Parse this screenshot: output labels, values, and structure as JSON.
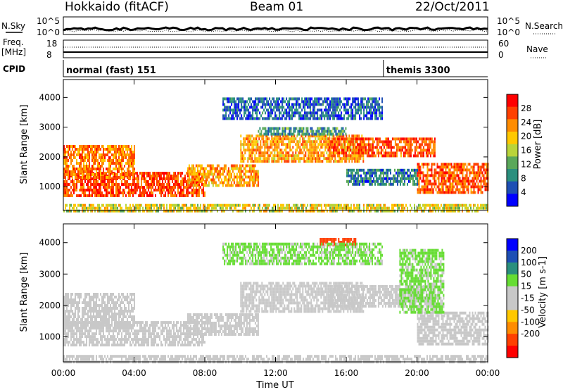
{
  "header": {
    "station": "Hokkaido (fitACF)",
    "beam": "Beam 01",
    "date": "22/Oct/2011"
  },
  "status_panel": {
    "nsky_label": "N.Sky",
    "nsky_ticks": [
      "10^5",
      "10^0"
    ],
    "nsearch_label": "N.Search",
    "nsearch_ticks": [
      "10^5",
      "10^0"
    ],
    "freq_label_1": "Freq.",
    "freq_label_2": "[MHz]",
    "freq_ticks": [
      "18",
      "8"
    ],
    "nave_label": "Nave",
    "nave_ticks": [
      "60",
      "0"
    ],
    "cpid_label": "CPID",
    "cpid_segments": [
      {
        "name": "normal (fast) 151",
        "start_hour": 0
      },
      {
        "name": "themis 3300",
        "start_hour": 18.1
      }
    ]
  },
  "chart_data": [
    {
      "type": "heatmap",
      "quantity": "power",
      "xlabel": "",
      "ylabel": "Slant Range [km]",
      "xlim": [
        0,
        24
      ],
      "ylim": [
        200,
        4600
      ],
      "y_ticks": [
        1000,
        2000,
        3000,
        4000
      ],
      "x_ticks_hours": [
        0,
        4,
        8,
        12,
        16,
        20,
        24
      ],
      "colorbar": {
        "label": "Power [dB]",
        "range": [
          0,
          32
        ],
        "ticks": [
          4,
          8,
          12,
          16,
          20,
          24,
          28
        ],
        "colors": [
          "#0000ff",
          "#1e4fb4",
          "#2a8f7e",
          "#5aa85a",
          "#b9d43a",
          "#ffc800",
          "#ff8c00",
          "#ff4000",
          "#ff0000"
        ]
      },
      "echo_bands": [
        {
          "t": [
            0,
            8
          ],
          "range_km": [
            700,
            1500
          ],
          "power_db": 27
        },
        {
          "t": [
            0,
            4
          ],
          "range_km": [
            1300,
            2400
          ],
          "power_db": 24
        },
        {
          "t": [
            7,
            11
          ],
          "range_km": [
            1050,
            1750
          ],
          "power_db": 22
        },
        {
          "t": [
            10,
            17
          ],
          "range_km": [
            1850,
            2750
          ],
          "power_db": 22
        },
        {
          "t": [
            11,
            16
          ],
          "range_km": [
            2800,
            3000
          ],
          "power_db": 10
        },
        {
          "t": [
            15,
            21
          ],
          "range_km": [
            2000,
            2650
          ],
          "power_db": 26
        },
        {
          "t": [
            20,
            24
          ],
          "range_km": [
            800,
            1800
          ],
          "power_db": 26
        },
        {
          "t": [
            9,
            18
          ],
          "range_km": [
            3300,
            4000
          ],
          "power_db": 6
        },
        {
          "t": [
            16,
            20
          ],
          "range_km": [
            1100,
            1600
          ],
          "power_db": 8
        },
        {
          "t": [
            0,
            24
          ],
          "range_km": [
            200,
            420
          ],
          "power_db": 18
        }
      ]
    },
    {
      "type": "heatmap",
      "quantity": "velocity",
      "xlabel": "Time UT",
      "ylabel": "Slant Range [km]",
      "xlim": [
        0,
        24
      ],
      "ylim": [
        200,
        4600
      ],
      "y_ticks": [
        1000,
        2000,
        3000,
        4000
      ],
      "x_ticks": [
        "00:00",
        "04:00",
        "08:00",
        "12:00",
        "16:00",
        "20:00",
        "00:00"
      ],
      "x_ticks_hours": [
        0,
        4,
        8,
        12,
        16,
        20,
        24
      ],
      "colorbar": {
        "label": "Velocity [m s-1]",
        "range": [
          -250,
          250
        ],
        "ticks": [
          200,
          100,
          50,
          15,
          -15,
          -50,
          -100,
          -200
        ],
        "colors": [
          "#ff0000",
          "#ff4000",
          "#ff8c00",
          "#ffc800",
          "#c8c8c8",
          "#c8c8c8",
          "#66dd33",
          "#2a8f7e",
          "#1e4fb4",
          "#0000ff"
        ]
      },
      "echo_bands": [
        {
          "t": [
            0,
            8
          ],
          "range_km": [
            700,
            1500
          ],
          "velocity": 0
        },
        {
          "t": [
            0,
            4
          ],
          "range_km": [
            1300,
            2400
          ],
          "velocity": 0
        },
        {
          "t": [
            7,
            11
          ],
          "range_km": [
            1050,
            1750
          ],
          "velocity": 0
        },
        {
          "t": [
            10,
            17
          ],
          "range_km": [
            1850,
            2750
          ],
          "velocity": 0
        },
        {
          "t": [
            15,
            21
          ],
          "range_km": [
            2000,
            2650
          ],
          "velocity": 0
        },
        {
          "t": [
            20,
            24
          ],
          "range_km": [
            800,
            1800
          ],
          "velocity": 0
        },
        {
          "t": [
            19,
            21.5
          ],
          "range_km": [
            1800,
            3800
          ],
          "velocity": 60
        },
        {
          "t": [
            14.5,
            16.5
          ],
          "range_km": [
            3900,
            4150
          ],
          "velocity": -180
        },
        {
          "t": [
            9,
            18
          ],
          "range_km": [
            3300,
            4000
          ],
          "velocity": 60
        },
        {
          "t": [
            0,
            24
          ],
          "range_km": [
            200,
            420
          ],
          "velocity": 0
        }
      ]
    }
  ]
}
